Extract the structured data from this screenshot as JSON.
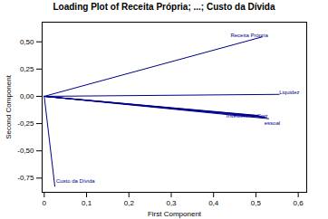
{
  "chart_data": {
    "type": "line",
    "title": "Loading Plot of Receita Própria; ...; Custo da Dívida",
    "xlabel": "First Component",
    "ylabel": "Second Component",
    "color": "#00008B",
    "xlim": [
      -0.005,
      0.62
    ],
    "ylim": [
      -0.88,
      0.68
    ],
    "xticks": [
      0,
      {
        "value": 0.1,
        "label": "0,1"
      },
      {
        "value": 0.2,
        "label": "0,2"
      },
      {
        "value": 0.3,
        "label": "0,3"
      },
      {
        "value": 0.4,
        "label": "0,4"
      },
      {
        "value": 0.5,
        "label": "0,5"
      },
      {
        "value": 0.6,
        "label": "0,6"
      }
    ],
    "yticks": [
      {
        "value": -0.75,
        "label": "-0,75"
      },
      {
        "value": -0.5,
        "label": "-0,50"
      },
      {
        "value": -0.25,
        "label": "-0,25"
      },
      {
        "value": 0.0,
        "label": "0,00"
      },
      {
        "value": 0.25,
        "label": "0,25"
      },
      {
        "value": 0.5,
        "label": "0,50"
      }
    ],
    "grid": false,
    "series": [
      {
        "x": [
          0,
          0.515
        ],
        "values": [
          0,
          0.545
        ]
      },
      {
        "x": [
          0,
          0.555
        ],
        "values": [
          0,
          0.018
        ]
      },
      {
        "x": [
          0,
          0.525
        ],
        "values": [
          0,
          -0.195
        ]
      },
      {
        "x": [
          0,
          0.53
        ],
        "values": [
          0,
          -0.205
        ]
      },
      {
        "x": [
          0,
          0.52
        ],
        "values": [
          0,
          -0.188
        ]
      },
      {
        "x": [
          0,
          0.51
        ],
        "values": [
          0,
          -0.18
        ]
      },
      {
        "x": [
          0,
          0.505
        ],
        "values": [
          0,
          -0.175
        ]
      },
      {
        "x": [
          0,
          0.025
        ],
        "values": [
          0,
          -0.825
        ]
      }
    ],
    "annotations": [
      {
        "text": "Receita Própria",
        "x": 0.44,
        "y": 0.56
      },
      {
        "text": "Liquidez",
        "x": 0.555,
        "y": 0.035
      },
      {
        "text": "InvestimentoCorr",
        "x": 0.43,
        "y": -0.195
      },
      {
        "text": "essoal",
        "x": 0.52,
        "y": -0.225
      },
      {
        "text": "Custo da Dívida",
        "x": 0.028,
        "y": -0.775
      }
    ]
  }
}
